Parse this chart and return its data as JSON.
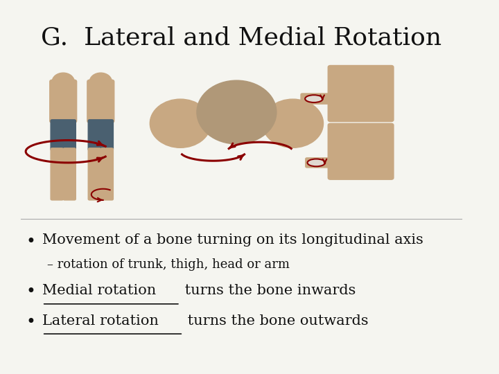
{
  "title": "G.  Lateral and Medial Rotation",
  "title_fontsize": 26,
  "title_font": "serif",
  "bg_color": "#f5f5f0",
  "text_color": "#111111",
  "bullet1": "Movement of a bone turning on its longitudinal axis",
  "sub_bullet": "– rotation of trunk, thigh, head or arm",
  "bullet2_prefix": "Medial rotation",
  "bullet2_suffix": " turns the bone inwards",
  "bullet3_prefix": "Lateral rotation",
  "bullet3_suffix": " turns the bone outwards",
  "bullet_fontsize": 15,
  "sub_bullet_fontsize": 13,
  "underline_color": "#111111",
  "shorts_color": "#4a6070",
  "arrow_color": "#8b0000",
  "face_color": "#c8a882",
  "skin_color": "#c8a882"
}
